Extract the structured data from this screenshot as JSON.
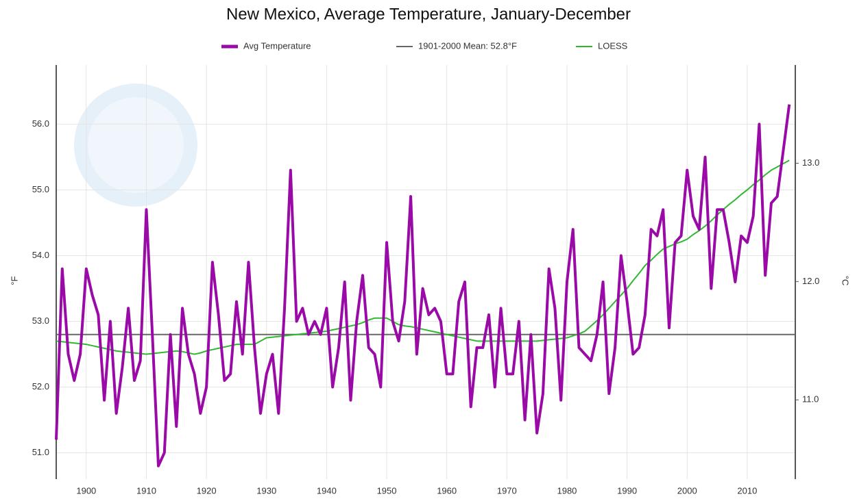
{
  "chart_data": {
    "type": "line",
    "title": "New Mexico, Average Temperature, January-December",
    "ylabel": "°F",
    "y2label": "°C",
    "x": [
      1895,
      1896,
      1897,
      1898,
      1899,
      1900,
      1901,
      1902,
      1903,
      1904,
      1905,
      1906,
      1907,
      1908,
      1909,
      1910,
      1911,
      1912,
      1913,
      1914,
      1915,
      1916,
      1917,
      1918,
      1919,
      1920,
      1921,
      1922,
      1923,
      1924,
      1925,
      1926,
      1927,
      1928,
      1929,
      1930,
      1931,
      1932,
      1933,
      1934,
      1935,
      1936,
      1937,
      1938,
      1939,
      1940,
      1941,
      1942,
      1943,
      1944,
      1945,
      1946,
      1947,
      1948,
      1949,
      1950,
      1951,
      1952,
      1953,
      1954,
      1955,
      1956,
      1957,
      1958,
      1959,
      1960,
      1961,
      1962,
      1963,
      1964,
      1965,
      1966,
      1967,
      1968,
      1969,
      1970,
      1971,
      1972,
      1973,
      1974,
      1975,
      1976,
      1977,
      1978,
      1979,
      1980,
      1981,
      1982,
      1983,
      1984,
      1985,
      1986,
      1987,
      1988,
      1989,
      1990,
      1991,
      1992,
      1993,
      1994,
      1995,
      1996,
      1997,
      1998,
      1999,
      2000,
      2001,
      2002,
      2003,
      2004,
      2005,
      2006,
      2007,
      2008,
      2009,
      2010,
      2011,
      2012,
      2013,
      2014,
      2015,
      2016,
      2017
    ],
    "series": [
      {
        "name": "Avg Temperature",
        "color": "#990aa6",
        "width": 4,
        "values": [
          51.2,
          53.8,
          52.5,
          52.1,
          52.5,
          53.8,
          53.4,
          53.1,
          51.8,
          53.0,
          51.6,
          52.3,
          53.2,
          52.1,
          52.4,
          54.7,
          52.8,
          50.8,
          51.0,
          52.8,
          51.4,
          53.2,
          52.5,
          52.2,
          51.6,
          52.0,
          53.9,
          53.1,
          52.1,
          52.2,
          53.3,
          52.5,
          53.9,
          52.6,
          51.6,
          52.2,
          52.5,
          51.6,
          53.2,
          55.3,
          53.0,
          53.2,
          52.8,
          53.0,
          52.8,
          53.2,
          52.0,
          52.6,
          53.6,
          51.8,
          53.0,
          53.7,
          52.6,
          52.5,
          52.0,
          54.2,
          53.0,
          52.7,
          53.3,
          54.9,
          52.5,
          53.5,
          53.1,
          53.2,
          53.0,
          52.2,
          52.2,
          53.3,
          53.6,
          51.7,
          52.6,
          52.6,
          53.1,
          52.0,
          53.2,
          52.2,
          52.2,
          53.0,
          51.5,
          52.8,
          51.3,
          51.9,
          53.8,
          53.2,
          51.8,
          53.6,
          54.4,
          52.6,
          52.5,
          52.4,
          52.8,
          53.6,
          51.9,
          52.6,
          54.0,
          53.3,
          52.5,
          52.6,
          53.1,
          54.4,
          54.3,
          54.7,
          52.9,
          54.2,
          54.3,
          55.3,
          54.6,
          54.4,
          55.5,
          53.5,
          54.7,
          54.7,
          54.2,
          53.6,
          54.3,
          54.2,
          54.6,
          56.0,
          53.7,
          54.8,
          54.9,
          55.6,
          56.3
        ]
      },
      {
        "name": "LOESS",
        "color": "#2eb82e",
        "width": 2,
        "values": [
          52.7,
          52.69,
          52.68,
          52.67,
          52.66,
          52.65,
          52.63,
          52.61,
          52.59,
          52.57,
          52.55,
          52.54,
          52.53,
          52.52,
          52.51,
          52.5,
          52.51,
          52.52,
          52.53,
          52.54,
          52.55,
          52.54,
          52.52,
          52.5,
          52.52,
          52.55,
          52.57,
          52.59,
          52.61,
          52.63,
          52.65,
          52.65,
          52.65,
          52.65,
          52.7,
          52.75,
          52.76,
          52.77,
          52.78,
          52.79,
          52.8,
          52.81,
          52.82,
          52.83,
          52.84,
          52.85,
          52.87,
          52.89,
          52.91,
          52.93,
          52.95,
          52.98,
          53.02,
          53.05,
          53.05,
          53.05,
          53.0,
          52.95,
          52.93,
          52.92,
          52.9,
          52.88,
          52.86,
          52.84,
          52.82,
          52.8,
          52.78,
          52.76,
          52.74,
          52.72,
          52.7,
          52.7,
          52.7,
          52.7,
          52.7,
          52.7,
          52.7,
          52.7,
          52.7,
          52.7,
          52.7,
          52.71,
          52.72,
          52.73,
          52.74,
          52.75,
          52.78,
          52.81,
          52.85,
          52.93,
          53.01,
          53.1,
          53.2,
          53.3,
          53.4,
          53.5,
          53.62,
          53.73,
          53.85,
          53.93,
          54.02,
          54.1,
          54.14,
          54.18,
          54.21,
          54.25,
          54.32,
          54.38,
          54.45,
          54.53,
          54.62,
          54.7,
          54.78,
          54.85,
          54.93,
          55.0,
          55.08,
          55.15,
          55.23,
          55.3,
          55.35,
          55.4,
          55.45
        ]
      }
    ],
    "mean": 52.8,
    "mean_name": "1901-2000 Mean: 52.8°F",
    "mean_color": "#666666",
    "xlim": [
      1895,
      2018
    ],
    "xticks": [
      1900,
      1910,
      1920,
      1930,
      1940,
      1950,
      1960,
      1970,
      1980,
      1990,
      2000,
      2010
    ],
    "ylim": [
      50.6,
      56.9
    ],
    "yticks": [
      {
        "value": 51,
        "label": "51.0"
      },
      {
        "value": 52,
        "label": "52.0"
      },
      {
        "value": 53,
        "label": "53.0"
      },
      {
        "value": 54,
        "label": "54.0"
      },
      {
        "value": 55,
        "label": "55.0"
      },
      {
        "value": 56,
        "label": "56.0"
      }
    ],
    "y2lim": [
      10.33,
      13.83
    ],
    "y2ticks": [
      {
        "value": 11,
        "label": "11.0"
      },
      {
        "value": 12,
        "label": "12.0"
      },
      {
        "value": 13,
        "label": "13.0"
      }
    ],
    "grid": true
  }
}
